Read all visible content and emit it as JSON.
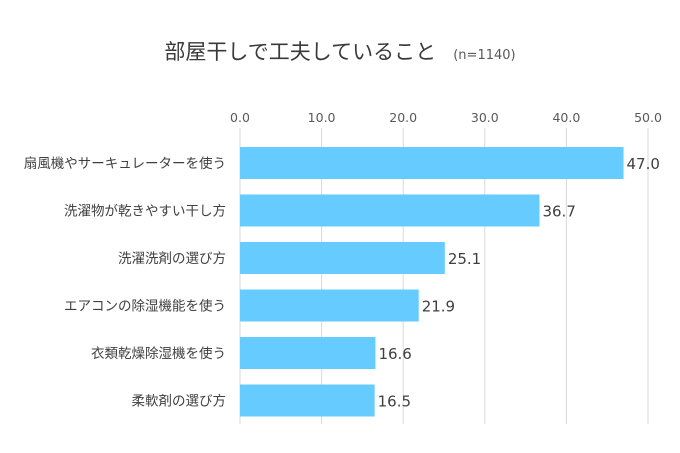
{
  "chart_data": {
    "type": "bar",
    "orientation": "horizontal",
    "title": "部屋干しで工夫していること",
    "subtitle": "(n=1140)",
    "categories": [
      "扇風機やサーキュレーターを使う",
      "洗濯物が乾きやすい干し方",
      "洗濯洗剤の選び方",
      "エアコンの除湿機能を使う",
      "衣類乾燥除湿機を使う",
      "柔軟剤の選び方"
    ],
    "values": [
      47.0,
      36.7,
      25.1,
      21.9,
      16.6,
      16.5
    ],
    "value_labels": [
      "47.0",
      "36.7",
      "25.1",
      "21.9",
      "16.6",
      "16.5"
    ],
    "xlim": [
      0,
      50
    ],
    "ticks": [
      "0.0",
      "10.0",
      "20.0",
      "30.0",
      "40.0",
      "50.0"
    ],
    "tick_position": "top",
    "grid": true,
    "bar_color": "#66CCFF",
    "grid_color": "#D9D9D9"
  }
}
